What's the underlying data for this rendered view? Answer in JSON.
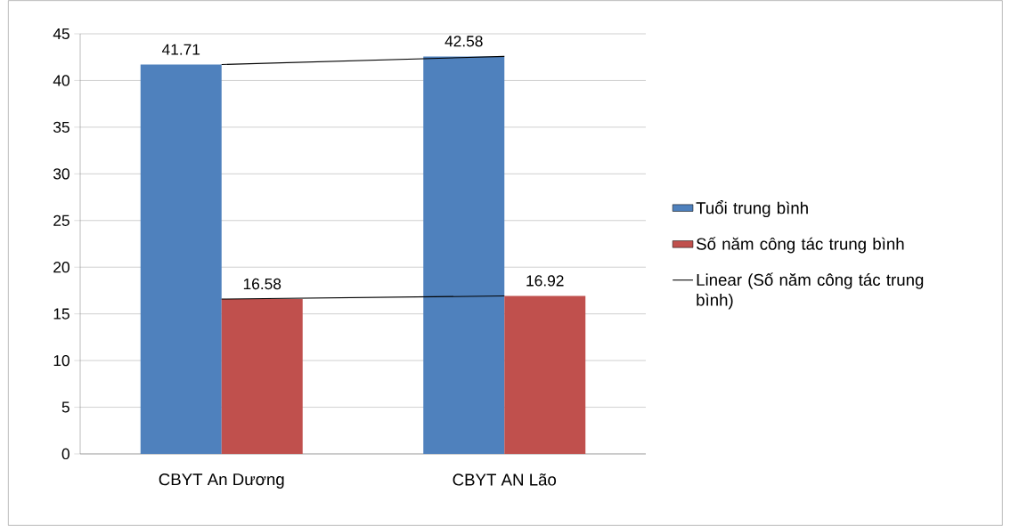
{
  "chart_data": {
    "type": "bar",
    "categories": [
      "CBYT An Dương",
      "CBYT AN Lão"
    ],
    "series": [
      {
        "name": "Tuổi trung bình",
        "color": "#4f81bd",
        "values": [
          41.71,
          42.58
        ],
        "value_labels": [
          "41.71",
          "42.58"
        ]
      },
      {
        "name": "Số năm công tác trung bình",
        "color": "#c0504d",
        "values": [
          16.58,
          16.92
        ],
        "value_labels": [
          "16.58",
          "16.92"
        ]
      },
      {
        "type": "line",
        "name": "Linear (Số năm công tác trung bình)",
        "color": "#000000",
        "values": [
          16.58,
          16.92
        ]
      },
      {
        "type": "line",
        "color": "#000000",
        "values": [
          41.71,
          42.58
        ]
      }
    ],
    "ylim": [
      0,
      45
    ],
    "yticks": [
      0,
      5,
      10,
      15,
      20,
      25,
      30,
      35,
      40,
      45
    ],
    "grid": "y",
    "legend": "right"
  }
}
